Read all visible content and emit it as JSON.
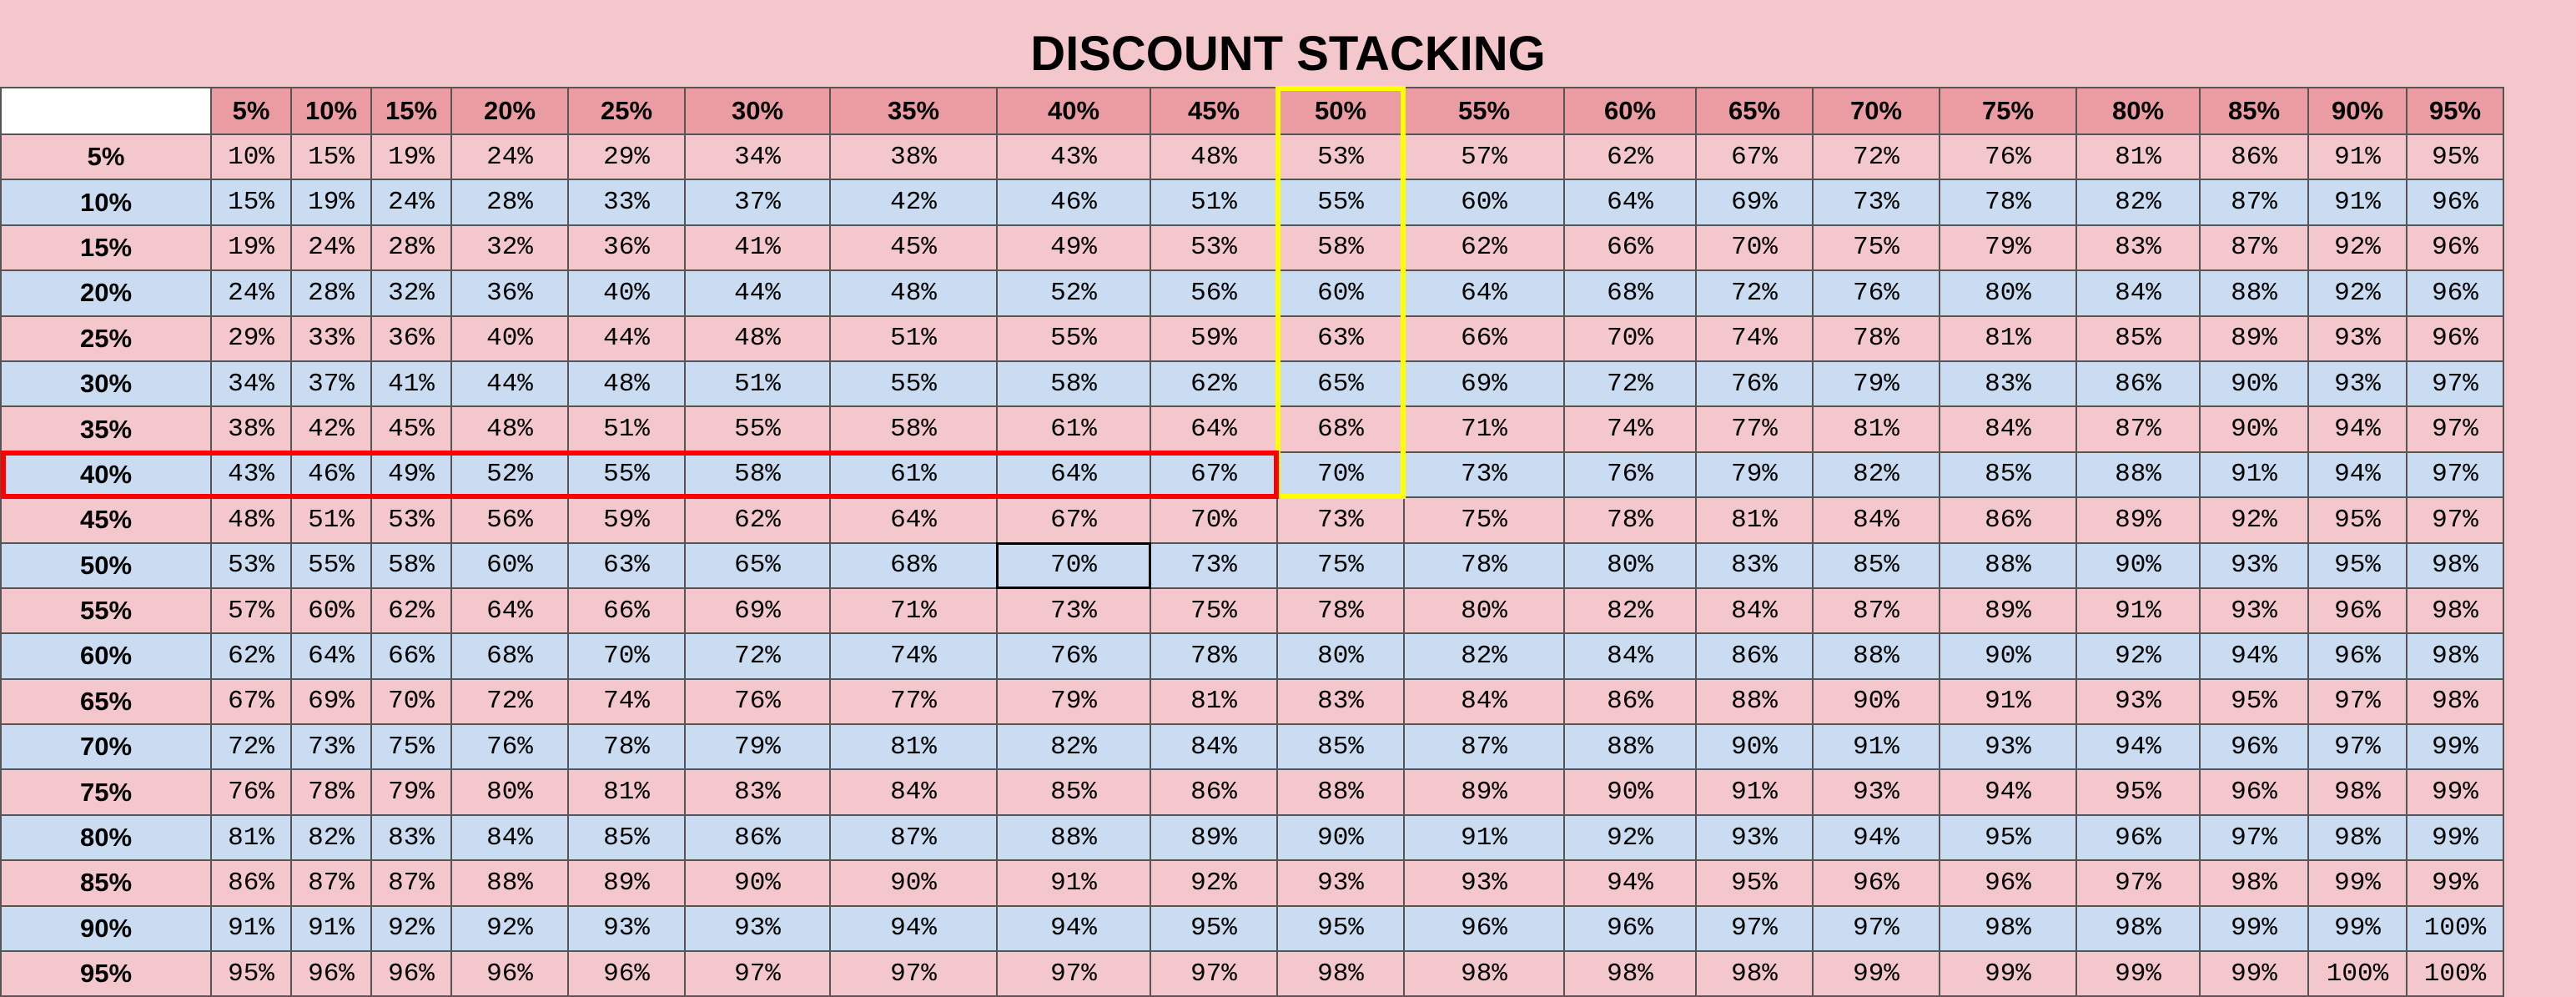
{
  "title": "DISCOUNT STACKING",
  "columns": [
    "5%",
    "10%",
    "15%",
    "20%",
    "25%",
    "30%",
    "35%",
    "40%",
    "45%",
    "50%",
    "55%",
    "60%",
    "65%",
    "70%",
    "75%",
    "80%",
    "85%",
    "90%",
    "95%"
  ],
  "rows": [
    {
      "label": "5%",
      "values": [
        "10%",
        "15%",
        "19%",
        "24%",
        "29%",
        "34%",
        "38%",
        "43%",
        "48%",
        "53%",
        "57%",
        "62%",
        "67%",
        "72%",
        "76%",
        "81%",
        "86%",
        "91%",
        "95%"
      ]
    },
    {
      "label": "10%",
      "values": [
        "15%",
        "19%",
        "24%",
        "28%",
        "33%",
        "37%",
        "42%",
        "46%",
        "51%",
        "55%",
        "60%",
        "64%",
        "69%",
        "73%",
        "78%",
        "82%",
        "87%",
        "91%",
        "96%"
      ]
    },
    {
      "label": "15%",
      "values": [
        "19%",
        "24%",
        "28%",
        "32%",
        "36%",
        "41%",
        "45%",
        "49%",
        "53%",
        "58%",
        "62%",
        "66%",
        "70%",
        "75%",
        "79%",
        "83%",
        "87%",
        "92%",
        "96%"
      ]
    },
    {
      "label": "20%",
      "values": [
        "24%",
        "28%",
        "32%",
        "36%",
        "40%",
        "44%",
        "48%",
        "52%",
        "56%",
        "60%",
        "64%",
        "68%",
        "72%",
        "76%",
        "80%",
        "84%",
        "88%",
        "92%",
        "96%"
      ]
    },
    {
      "label": "25%",
      "values": [
        "29%",
        "33%",
        "36%",
        "40%",
        "44%",
        "48%",
        "51%",
        "55%",
        "59%",
        "63%",
        "66%",
        "70%",
        "74%",
        "78%",
        "81%",
        "85%",
        "89%",
        "93%",
        "96%"
      ]
    },
    {
      "label": "30%",
      "values": [
        "34%",
        "37%",
        "41%",
        "44%",
        "48%",
        "51%",
        "55%",
        "58%",
        "62%",
        "65%",
        "69%",
        "72%",
        "76%",
        "79%",
        "83%",
        "86%",
        "90%",
        "93%",
        "97%"
      ]
    },
    {
      "label": "35%",
      "values": [
        "38%",
        "42%",
        "45%",
        "48%",
        "51%",
        "55%",
        "58%",
        "61%",
        "64%",
        "68%",
        "71%",
        "74%",
        "77%",
        "81%",
        "84%",
        "87%",
        "90%",
        "94%",
        "97%"
      ]
    },
    {
      "label": "40%",
      "values": [
        "43%",
        "46%",
        "49%",
        "52%",
        "55%",
        "58%",
        "61%",
        "64%",
        "67%",
        "70%",
        "73%",
        "76%",
        "79%",
        "82%",
        "85%",
        "88%",
        "91%",
        "94%",
        "97%"
      ]
    },
    {
      "label": "45%",
      "values": [
        "48%",
        "51%",
        "53%",
        "56%",
        "59%",
        "62%",
        "64%",
        "67%",
        "70%",
        "73%",
        "75%",
        "78%",
        "81%",
        "84%",
        "86%",
        "89%",
        "92%",
        "95%",
        "97%"
      ]
    },
    {
      "label": "50%",
      "values": [
        "53%",
        "55%",
        "58%",
        "60%",
        "63%",
        "65%",
        "68%",
        "70%",
        "73%",
        "75%",
        "78%",
        "80%",
        "83%",
        "85%",
        "88%",
        "90%",
        "93%",
        "95%",
        "98%"
      ]
    },
    {
      "label": "55%",
      "values": [
        "57%",
        "60%",
        "62%",
        "64%",
        "66%",
        "69%",
        "71%",
        "73%",
        "75%",
        "78%",
        "80%",
        "82%",
        "84%",
        "87%",
        "89%",
        "91%",
        "93%",
        "96%",
        "98%"
      ]
    },
    {
      "label": "60%",
      "values": [
        "62%",
        "64%",
        "66%",
        "68%",
        "70%",
        "72%",
        "74%",
        "76%",
        "78%",
        "80%",
        "82%",
        "84%",
        "86%",
        "88%",
        "90%",
        "92%",
        "94%",
        "96%",
        "98%"
      ]
    },
    {
      "label": "65%",
      "values": [
        "67%",
        "69%",
        "70%",
        "72%",
        "74%",
        "76%",
        "77%",
        "79%",
        "81%",
        "83%",
        "84%",
        "86%",
        "88%",
        "90%",
        "91%",
        "93%",
        "95%",
        "97%",
        "98%"
      ]
    },
    {
      "label": "70%",
      "values": [
        "72%",
        "73%",
        "75%",
        "76%",
        "78%",
        "79%",
        "81%",
        "82%",
        "84%",
        "85%",
        "87%",
        "88%",
        "90%",
        "91%",
        "93%",
        "94%",
        "96%",
        "97%",
        "99%"
      ]
    },
    {
      "label": "75%",
      "values": [
        "76%",
        "78%",
        "79%",
        "80%",
        "81%",
        "83%",
        "84%",
        "85%",
        "86%",
        "88%",
        "89%",
        "90%",
        "91%",
        "93%",
        "94%",
        "95%",
        "96%",
        "98%",
        "99%"
      ]
    },
    {
      "label": "80%",
      "values": [
        "81%",
        "82%",
        "83%",
        "84%",
        "85%",
        "86%",
        "87%",
        "88%",
        "89%",
        "90%",
        "91%",
        "92%",
        "93%",
        "94%",
        "95%",
        "96%",
        "97%",
        "98%",
        "99%"
      ]
    },
    {
      "label": "85%",
      "values": [
        "86%",
        "87%",
        "87%",
        "88%",
        "89%",
        "90%",
        "90%",
        "91%",
        "92%",
        "93%",
        "93%",
        "94%",
        "95%",
        "96%",
        "96%",
        "97%",
        "98%",
        "99%",
        "99%"
      ]
    },
    {
      "label": "90%",
      "values": [
        "91%",
        "91%",
        "92%",
        "92%",
        "93%",
        "93%",
        "94%",
        "94%",
        "95%",
        "95%",
        "96%",
        "96%",
        "97%",
        "97%",
        "98%",
        "98%",
        "99%",
        "99%",
        "100%"
      ]
    },
    {
      "label": "95%",
      "values": [
        "95%",
        "96%",
        "96%",
        "96%",
        "96%",
        "97%",
        "97%",
        "97%",
        "97%",
        "98%",
        "98%",
        "98%",
        "98%",
        "99%",
        "99%",
        "99%",
        "99%",
        "100%",
        "100%"
      ]
    }
  ],
  "row_stripes": [
    "pink",
    "blue"
  ],
  "highlights": {
    "column": {
      "label": "50%",
      "color": "#ffff00"
    },
    "row": {
      "label": "40%",
      "color": "#ff0000"
    },
    "cell": {
      "row": "50%",
      "column": "40%",
      "color": "#000000"
    }
  },
  "colors": {
    "header": "#eb9ca2",
    "pink_row": "#f4c7cc",
    "blue_row": "#c9dcf1"
  }
}
